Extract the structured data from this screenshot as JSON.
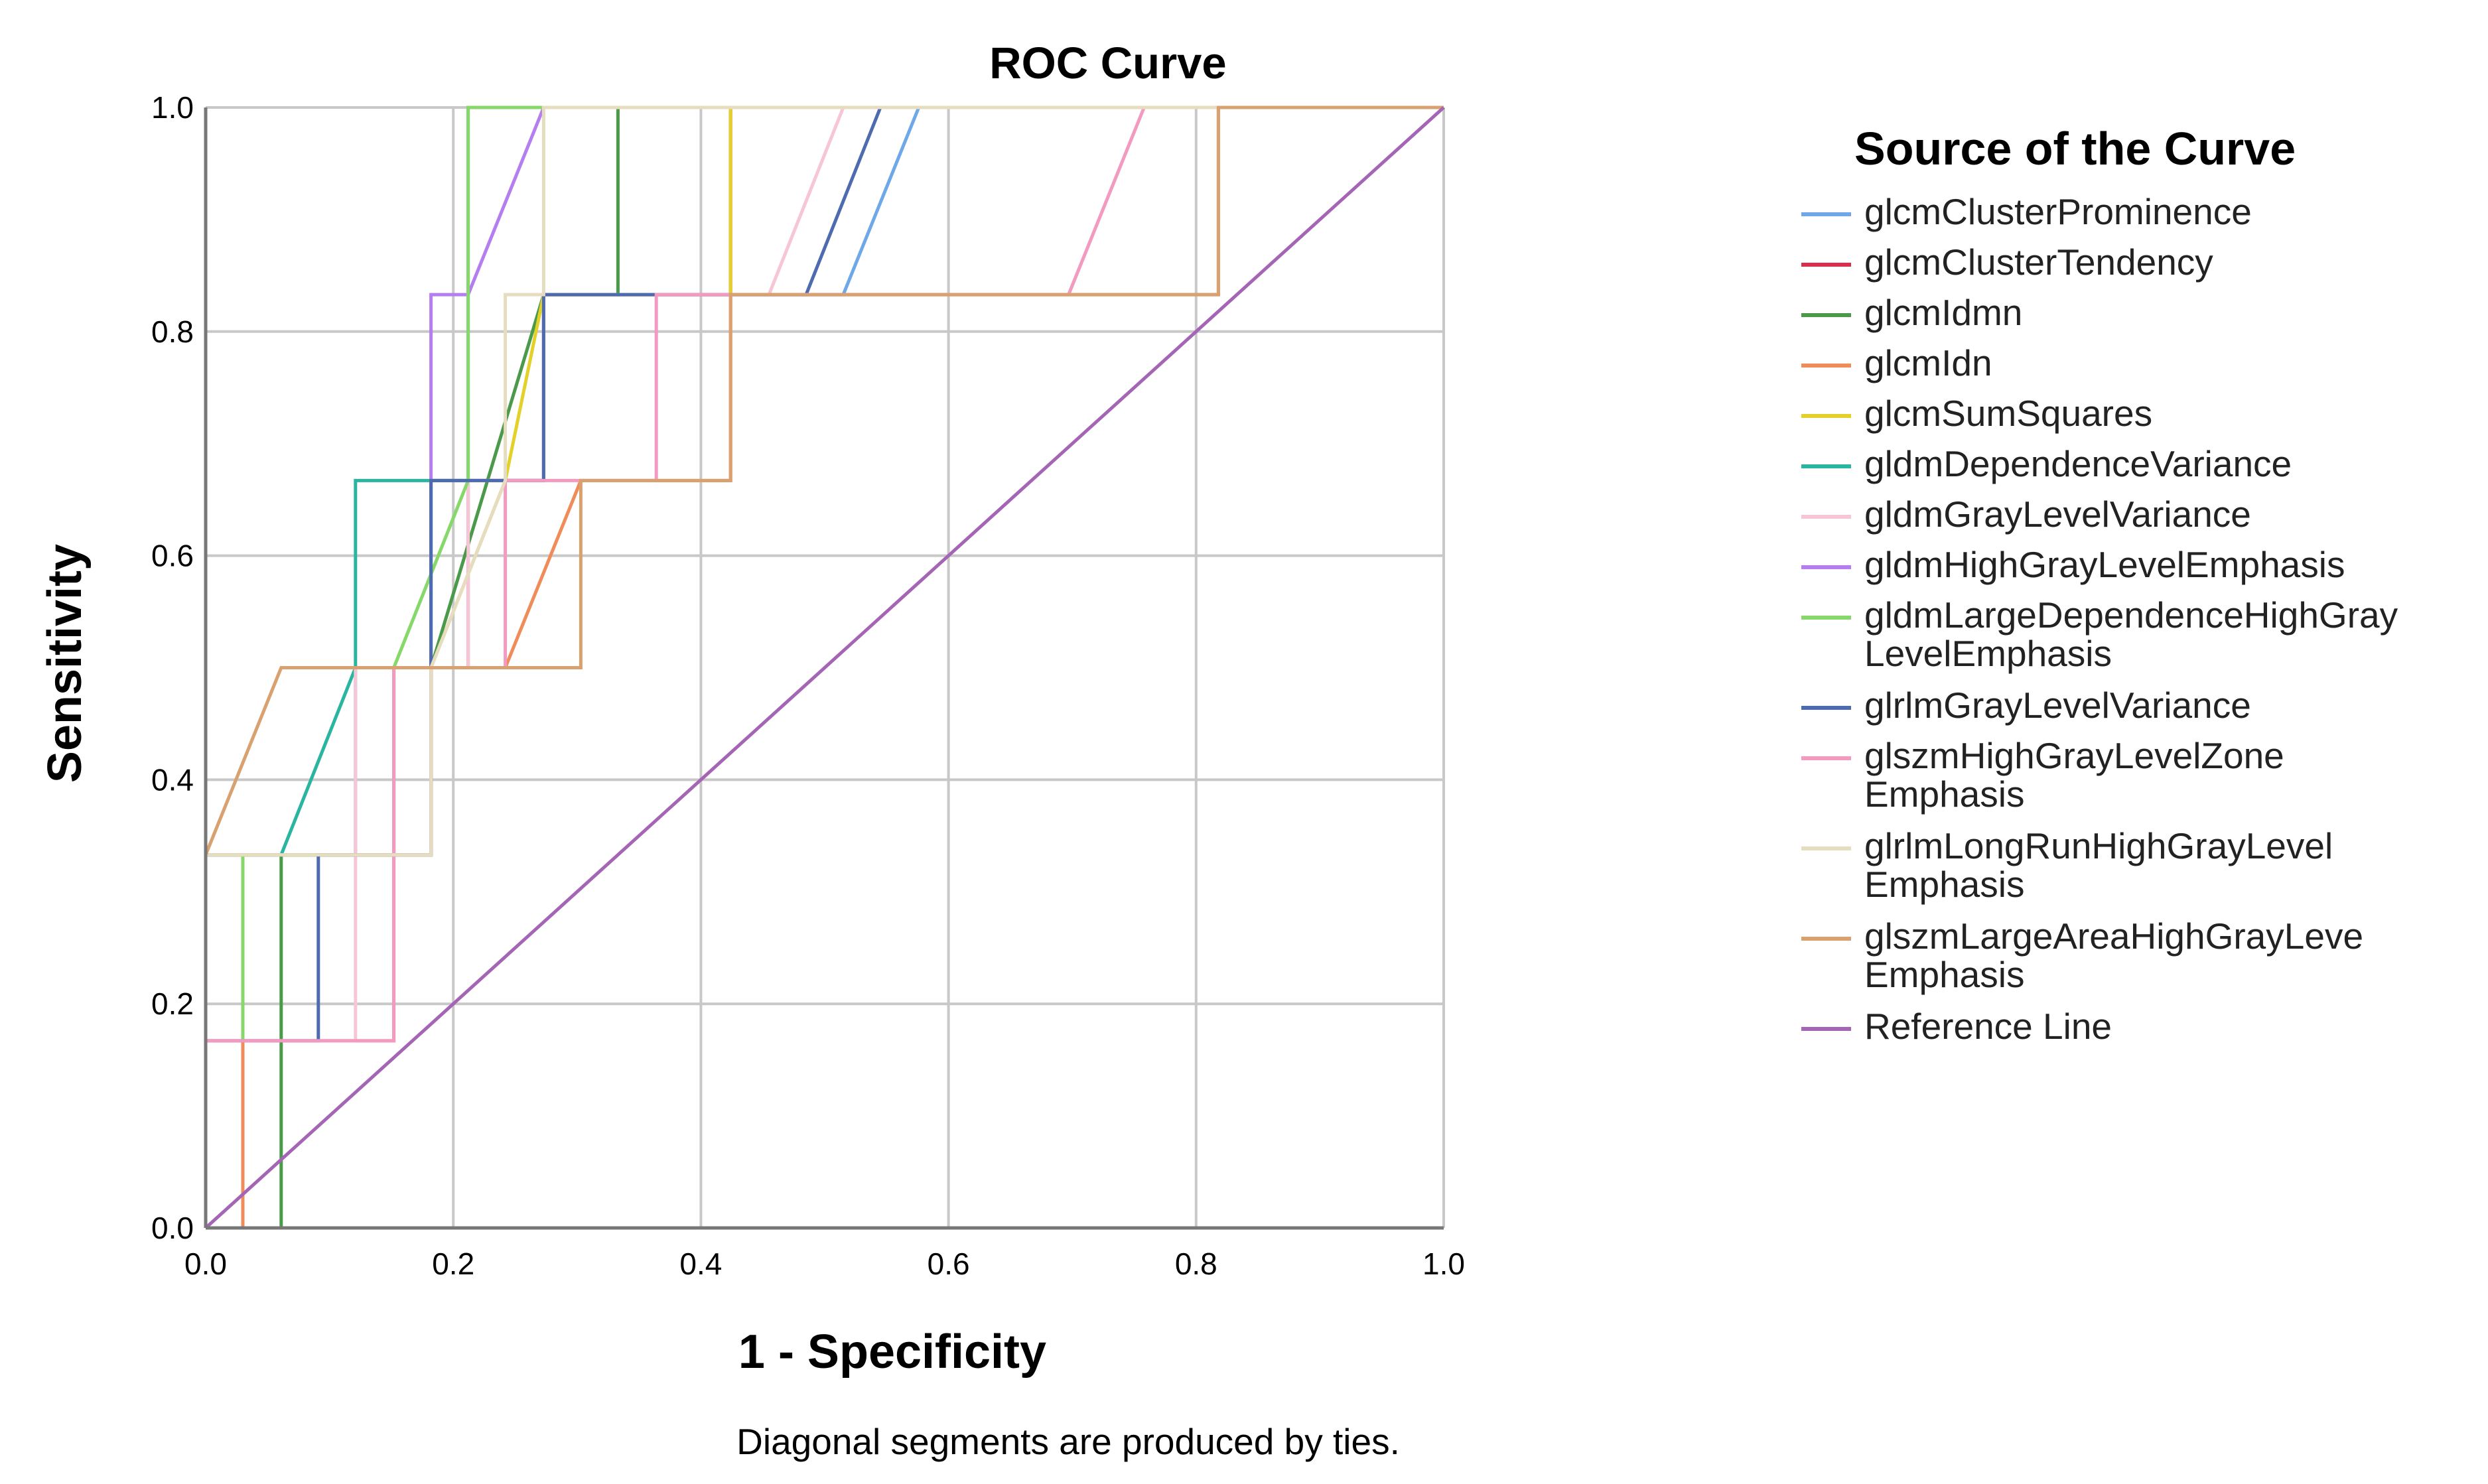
{
  "chart_data": {
    "type": "line",
    "title": "ROC Curve",
    "xlabel": "1 - Specificity",
    "ylabel": "Sensitivity",
    "xlim": [
      0,
      1
    ],
    "ylim": [
      0,
      1
    ],
    "xticks": [
      "0.0",
      "0.2",
      "0.4",
      "0.6",
      "0.8",
      "1.0"
    ],
    "yticks": [
      "0.0",
      "0.2",
      "0.4",
      "0.6",
      "0.8",
      "1.0"
    ],
    "grid": true,
    "legend_title": "Source of the Curve",
    "legend_position": "right",
    "footnote": "Diagonal segments are produced by ties.",
    "series": [
      {
        "name": "glcmClusterProminence",
        "color": "#6fa8e8",
        "points": [
          [
            0,
            0
          ],
          [
            0,
            0.333
          ],
          [
            0.121,
            0.333
          ],
          [
            0.121,
            0.5
          ],
          [
            0.182,
            0.5
          ],
          [
            0.182,
            0.667
          ],
          [
            0.273,
            0.667
          ],
          [
            0.273,
            0.833
          ],
          [
            0.515,
            0.833
          ],
          [
            0.576,
            1
          ],
          [
            1,
            1
          ]
        ]
      },
      {
        "name": "glcmClusterTendency",
        "color": "#d6304f",
        "points": [
          [
            0,
            0
          ],
          [
            0,
            0.333
          ],
          [
            0.182,
            0.333
          ],
          [
            0.182,
            0.5
          ],
          [
            0.212,
            0.5
          ],
          [
            0.212,
            0.667
          ],
          [
            0.273,
            0.667
          ],
          [
            0.273,
            0.833
          ],
          [
            0.424,
            0.833
          ],
          [
            0.424,
            1
          ],
          [
            1,
            1
          ]
        ]
      },
      {
        "name": "glcmIdmn",
        "color": "#4a9a4a",
        "points": [
          [
            0,
            0
          ],
          [
            0.061,
            0
          ],
          [
            0.061,
            0.333
          ],
          [
            0.152,
            0.333
          ],
          [
            0.152,
            0.5
          ],
          [
            0.182,
            0.5
          ],
          [
            0.273,
            0.833
          ],
          [
            0.333,
            0.833
          ],
          [
            0.333,
            1
          ],
          [
            1,
            1
          ]
        ]
      },
      {
        "name": "glcmIdn",
        "color": "#f08c5a",
        "points": [
          [
            0,
            0
          ],
          [
            0.03,
            0
          ],
          [
            0.03,
            0.167
          ],
          [
            0.152,
            0.167
          ],
          [
            0.152,
            0.333
          ],
          [
            0.182,
            0.333
          ],
          [
            0.182,
            0.5
          ],
          [
            0.242,
            0.5
          ],
          [
            0.303,
            0.667
          ],
          [
            0.424,
            0.667
          ],
          [
            0.424,
            0.833
          ],
          [
            0.818,
            0.833
          ],
          [
            0.818,
            1
          ],
          [
            1,
            1
          ]
        ]
      },
      {
        "name": "glcmSumSquares",
        "color": "#e3d12a",
        "points": [
          [
            0,
            0
          ],
          [
            0,
            0.333
          ],
          [
            0.182,
            0.333
          ],
          [
            0.182,
            0.5
          ],
          [
            0.242,
            0.667
          ],
          [
            0.273,
            0.833
          ],
          [
            0.424,
            0.833
          ],
          [
            0.424,
            1
          ],
          [
            1,
            1
          ]
        ]
      },
      {
        "name": "gldmDependenceVariance",
        "color": "#2ab5a0",
        "points": [
          [
            0,
            0
          ],
          [
            0,
            0.333
          ],
          [
            0.061,
            0.333
          ],
          [
            0.121,
            0.5
          ],
          [
            0.121,
            0.667
          ],
          [
            0.212,
            0.667
          ],
          [
            0.212,
            1
          ],
          [
            0.424,
            1
          ],
          [
            0.424,
            1
          ],
          [
            1,
            1
          ]
        ]
      },
      {
        "name": "gldmGrayLevelVariance",
        "color": "#f7c6d6",
        "points": [
          [
            0,
            0
          ],
          [
            0,
            0.167
          ],
          [
            0.121,
            0.167
          ],
          [
            0.121,
            0.5
          ],
          [
            0.212,
            0.5
          ],
          [
            0.212,
            0.667
          ],
          [
            0.273,
            0.667
          ],
          [
            0.273,
            0.833
          ],
          [
            0.455,
            0.833
          ],
          [
            0.515,
            1
          ],
          [
            1,
            1
          ]
        ]
      },
      {
        "name": "gldmHighGrayLevelEmphasis",
        "color": "#b57ef0",
        "points": [
          [
            0,
            0
          ],
          [
            0,
            0.333
          ],
          [
            0.182,
            0.333
          ],
          [
            0.182,
            0.833
          ],
          [
            0.212,
            0.833
          ],
          [
            0.273,
            1
          ],
          [
            1,
            1
          ]
        ]
      },
      {
        "name": "gldmLargeDependenceHighGray\nLevelEmphasis",
        "color": "#86d86a",
        "points": [
          [
            0,
            0
          ],
          [
            0,
            0.333
          ],
          [
            0.03,
            0.333
          ],
          [
            0.03,
            0.167
          ],
          [
            0.03,
            0.333
          ],
          [
            0.152,
            0.333
          ],
          [
            0.152,
            0.5
          ],
          [
            0.212,
            0.667
          ],
          [
            0.212,
            1
          ],
          [
            1,
            1
          ]
        ]
      },
      {
        "name": "glrlmGrayLevelVariance",
        "color": "#4f6bb0",
        "points": [
          [
            0,
            0
          ],
          [
            0,
            0.167
          ],
          [
            0.091,
            0.167
          ],
          [
            0.091,
            0.333
          ],
          [
            0.182,
            0.333
          ],
          [
            0.182,
            0.667
          ],
          [
            0.273,
            0.667
          ],
          [
            0.273,
            0.833
          ],
          [
            0.485,
            0.833
          ],
          [
            0.545,
            1
          ],
          [
            1,
            1
          ]
        ]
      },
      {
        "name": "glszmHighGrayLevelZone\nEmphasis",
        "color": "#f29ac0",
        "points": [
          [
            0,
            0
          ],
          [
            0,
            0.167
          ],
          [
            0.152,
            0.167
          ],
          [
            0.152,
            0.5
          ],
          [
            0.242,
            0.5
          ],
          [
            0.242,
            0.667
          ],
          [
            0.364,
            0.667
          ],
          [
            0.364,
            0.833
          ],
          [
            0.697,
            0.833
          ],
          [
            0.758,
            1
          ],
          [
            1,
            1
          ]
        ]
      },
      {
        "name": "glrlmLongRunHighGrayLevel\nEmphasis",
        "color": "#e6dcc0",
        "points": [
          [
            0,
            0
          ],
          [
            0,
            0.333
          ],
          [
            0.182,
            0.333
          ],
          [
            0.182,
            0.5
          ],
          [
            0.242,
            0.667
          ],
          [
            0.242,
            0.833
          ],
          [
            0.273,
            0.833
          ],
          [
            0.273,
            1
          ],
          [
            1,
            1
          ]
        ]
      },
      {
        "name": "glszmLargeAreaHighGrayLeve\nEmphasis",
        "color": "#d9a070",
        "points": [
          [
            0,
            0
          ],
          [
            0,
            0.333
          ],
          [
            0.061,
            0.5
          ],
          [
            0.303,
            0.5
          ],
          [
            0.303,
            0.667
          ],
          [
            0.424,
            0.667
          ],
          [
            0.424,
            0.833
          ],
          [
            0.818,
            0.833
          ],
          [
            0.818,
            1
          ],
          [
            1,
            1
          ]
        ]
      },
      {
        "name": "Reference Line",
        "color": "#a565b5",
        "points": [
          [
            0,
            0
          ],
          [
            1,
            1
          ]
        ]
      }
    ]
  }
}
